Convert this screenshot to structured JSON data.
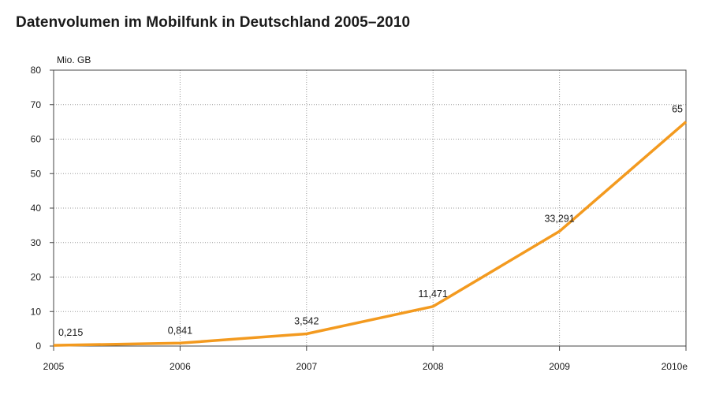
{
  "chart_data": {
    "type": "line",
    "title": "Datenvolumen im Mobilfunk in Deutschland 2005–2010",
    "ylabel": "Mio. GB",
    "xlabel": "",
    "categories": [
      "2005",
      "2006",
      "2007",
      "2008",
      "2009",
      "2010e"
    ],
    "series": [
      {
        "values": [
          0.215,
          0.841,
          3.542,
          11.471,
          33.291,
          65
        ],
        "labels": [
          "0,215",
          "0,841",
          "3,542",
          "11,471",
          "33,291",
          "65"
        ],
        "color": "#f39a1f"
      }
    ],
    "ylim": [
      0,
      80
    ],
    "yticks": [
      0,
      10,
      20,
      30,
      40,
      50,
      60,
      70,
      80
    ],
    "grid": true,
    "grid_style": "dotted",
    "legend": "none"
  }
}
